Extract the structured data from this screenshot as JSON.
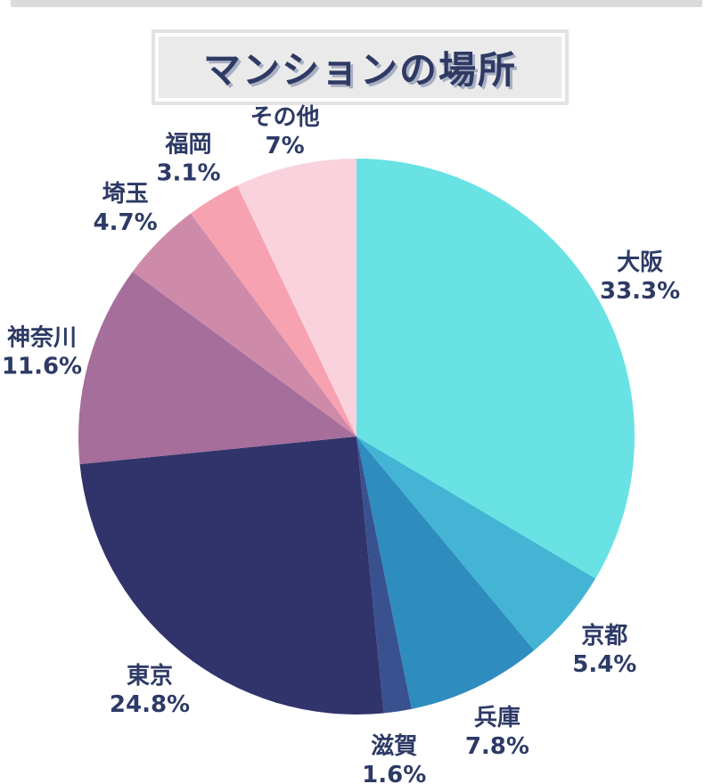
{
  "decor": {
    "top_bar_color": "#DBDBDB"
  },
  "title_box": {
    "fill": "#EAEAEA",
    "inner_frame_color": "#FFFFFF",
    "outer_frame_color": "#E3E3E3",
    "text_color": "#2E3A64",
    "text_shadow_color": "#A8AFC2"
  },
  "chart_data": {
    "type": "pie",
    "title": "マンションの場所",
    "labels": [
      "大阪",
      "京都",
      "兵庫",
      "滋賀",
      "東京",
      "神奈川",
      "埼玉",
      "福岡",
      "その他"
    ],
    "values": [
      33.3,
      5.4,
      7.8,
      1.6,
      24.8,
      11.6,
      4.7,
      3.1,
      7
    ],
    "percent_labels": [
      "33.3%",
      "5.4%",
      "7.8%",
      "1.6%",
      "24.8%",
      "11.6%",
      "4.7%",
      "3.1%",
      "7%"
    ],
    "colors": [
      "#69E2E4",
      "#43B4D4",
      "#2F8CBE",
      "#3A5190",
      "#31336B",
      "#A56E9B",
      "#CE8BA9",
      "#F7A2B1",
      "#FAD2DD"
    ],
    "label_color": "#2D3A66",
    "start_angle_deg": 0,
    "direction": "clockwise",
    "legend": "none"
  }
}
